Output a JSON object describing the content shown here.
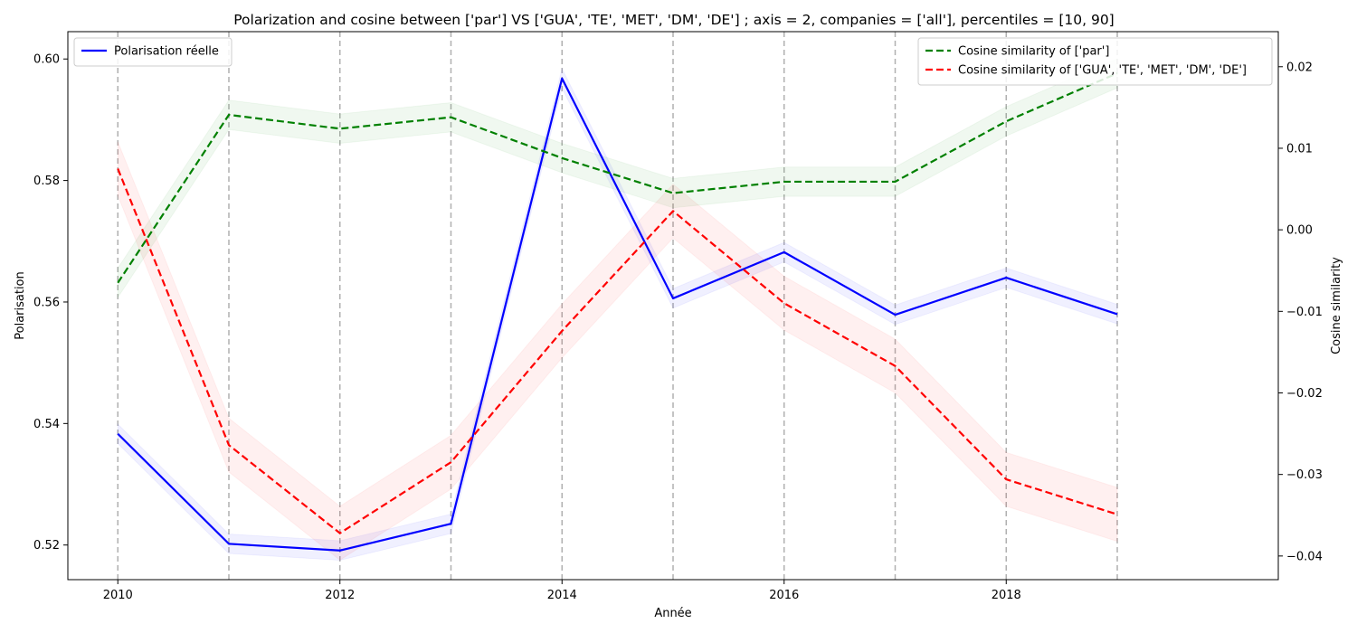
{
  "chart_data": {
    "type": "line",
    "title": "Polarization and cosine between ['par'] VS ['GUA', 'TE', 'MET', 'DM', 'DE'] ; axis = 2, companies = ['all'], percentiles = [10, 90]",
    "xlabel": "Année",
    "ylabel_left": "Polarisation",
    "ylabel_right": "Cosine similarity",
    "x": [
      2010,
      2011,
      2012,
      2013,
      2014,
      2015,
      2016,
      2017,
      2018,
      2019
    ],
    "xlim": [
      2009.55,
      2020.45
    ],
    "x_ticks": [
      2010,
      2012,
      2014,
      2016,
      2018
    ],
    "x_tick_labels": [
      "2010",
      "2012",
      "2014",
      "2016",
      "2018"
    ],
    "ylim_left": [
      0.5143,
      0.6045
    ],
    "y_ticks_left": [
      0.52,
      0.54,
      0.56,
      0.58,
      0.6
    ],
    "y_tick_labels_left": [
      "0.52",
      "0.54",
      "0.56",
      "0.58",
      "0.60"
    ],
    "ylim_right": [
      -0.0429,
      0.0243
    ],
    "y_ticks_right": [
      -0.04,
      -0.03,
      -0.02,
      -0.01,
      0.0,
      0.01,
      0.02
    ],
    "y_tick_labels_right": [
      "−0.04",
      "−0.03",
      "−0.02",
      "−0.01",
      "0.00",
      "0.01",
      "0.02"
    ],
    "vertical_gridlines_at": [
      2010,
      2011,
      2012,
      2013,
      2014,
      2015,
      2016,
      2017,
      2018,
      2019
    ],
    "series": [
      {
        "name": "Polarisation réelle",
        "axis": "left",
        "style": "solid",
        "color": "#0000ff",
        "values": [
          0.5383,
          0.5202,
          0.5191,
          0.5235,
          0.5968,
          0.5606,
          0.5682,
          0.5579,
          0.564,
          0.558
        ],
        "band": 0.0016
      },
      {
        "name": "Cosine similarity of ['par']",
        "axis": "right",
        "style": "dashed",
        "color": "#008000",
        "values": [
          -0.0065,
          0.0141,
          0.0124,
          0.0138,
          0.0088,
          0.0045,
          0.0059,
          0.0059,
          0.0133,
          0.0192
        ],
        "band": 0.0018
      },
      {
        "name": "Cosine similarity of ['GUA', 'TE', 'MET', 'DM', 'DE']",
        "axis": "right",
        "style": "dashed",
        "color": "#ff0000",
        "values": [
          0.0075,
          -0.0264,
          -0.0372,
          -0.0285,
          -0.0124,
          0.0023,
          -0.009,
          -0.0167,
          -0.0306,
          -0.0349
        ],
        "band": 0.0033
      }
    ],
    "legend_left": {
      "placement": "upper-left",
      "entries": [
        "Polarisation réelle"
      ]
    },
    "legend_right": {
      "placement": "upper-right",
      "entries": [
        "Cosine similarity of ['par']",
        "Cosine similarity of ['GUA', 'TE', 'MET', 'DM', 'DE']"
      ]
    }
  }
}
